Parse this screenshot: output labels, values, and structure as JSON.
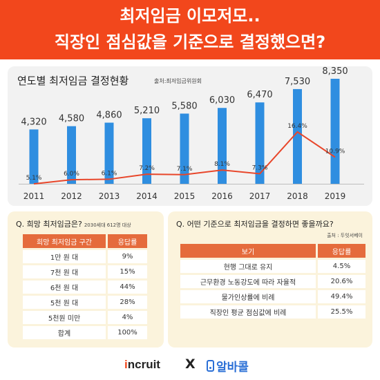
{
  "banner": {
    "line1": "최저임금 이모저모..",
    "line2": "직장인 점심값을 기준으로 결정했으면?"
  },
  "colors": {
    "accent": "#f2471c",
    "bar": "#2f8ee0",
    "line": "#e8462a",
    "table_header": "#e56b3c",
    "panel_bg": "#fbf3dc"
  },
  "chart_data": {
    "type": "bar",
    "title": "연도별 최저임금 결정현황",
    "source": "출처:최저임금위원회",
    "categories": [
      "2011",
      "2012",
      "2013",
      "2014",
      "2015",
      "2016",
      "2017",
      "2018",
      "2019"
    ],
    "series": [
      {
        "values": [
          4320,
          4580,
          4860,
          5210,
          5580,
          6030,
          6470,
          7530,
          8350
        ],
        "labels": [
          "4,320",
          "4,580",
          "4,860",
          "5,210",
          "5,580",
          "6,030",
          "6,470",
          "7,530",
          "8,350"
        ]
      },
      {
        "type": "line",
        "values": [
          5.1,
          6.0,
          6.1,
          7.2,
          7.1,
          8.1,
          7.3,
          16.4,
          10.9
        ],
        "labels": [
          "5.1%",
          "6.0%",
          "6.1%",
          "7.2%",
          "7.1%",
          "8.1%",
          "7.3%",
          "16.4%",
          "10.9%"
        ]
      }
    ],
    "grid": false
  },
  "survey1": {
    "title": "Q. 희망 최저임금은?",
    "note": "2030세대 612명 대상",
    "headers": [
      "희망 최저임금 구간",
      "응답률"
    ],
    "rows": [
      {
        "label": "1만 원 대",
        "value": "9%"
      },
      {
        "label": "7천 원 대",
        "value": "15%"
      },
      {
        "label": "6천 원 대",
        "value": "44%"
      },
      {
        "label": "5천 원 대",
        "value": "28%"
      },
      {
        "label": "5천원 미만",
        "value": "4%"
      },
      {
        "label": "합계",
        "value": "100%"
      }
    ]
  },
  "survey2": {
    "title": "Q. 어떤 기준으로 최저임금을 결정하면 좋을까요?",
    "source": "출처 : 두잇서베이",
    "headers": [
      "보기",
      "응답률"
    ],
    "rows": [
      {
        "label": "현행 그대로 유지",
        "value": "4.5%"
      },
      {
        "label": "근무환경 노동강도에 따라 자율적",
        "value": "20.6%"
      },
      {
        "label": "물가인상률에 비례",
        "value": "49.4%"
      },
      {
        "label": "직장인 평균 점심값에 비례",
        "value": "25.5%"
      }
    ]
  },
  "footer": {
    "incruit_i": "i",
    "incruit_rest": "ncruit",
    "x": "X",
    "alba": "알바콜"
  }
}
